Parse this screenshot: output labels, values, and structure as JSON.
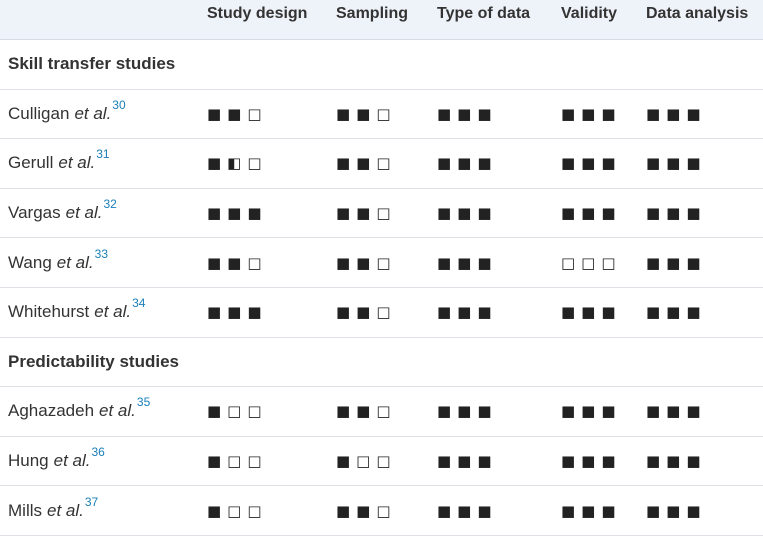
{
  "table": {
    "columns": [
      "Study design",
      "Sampling",
      "Type of data",
      "Validity",
      "Data analysis"
    ],
    "sections": [
      {
        "title": "Skill transfer studies",
        "rows": [
          {
            "study": {
              "name": "Culligan",
              "etal": "et al.",
              "ref": "30"
            },
            "ratings": [
              "■■□",
              "■■□",
              "■■■",
              "■■■",
              "■■■"
            ]
          },
          {
            "study": {
              "name": "Gerull",
              "etal": "et al.",
              "ref": "31"
            },
            "ratings": [
              "■◧□",
              "■■□",
              "■■■",
              "■■■",
              "■■■"
            ]
          },
          {
            "study": {
              "name": "Vargas",
              "etal": "et al.",
              "ref": "32"
            },
            "ratings": [
              "■■■",
              "■■□",
              "■■■",
              "■■■",
              "■■■"
            ]
          },
          {
            "study": {
              "name": "Wang",
              "etal": "et al.",
              "ref": "33"
            },
            "ratings": [
              "■■□",
              "■■□",
              "■■■",
              "□□□",
              "■■■"
            ]
          },
          {
            "study": {
              "name": "Whitehurst",
              "etal": "et al.",
              "ref": "34"
            },
            "ratings": [
              "■■■",
              "■■□",
              "■■■",
              "■■■",
              "■■■"
            ]
          }
        ]
      },
      {
        "title": "Predictability studies",
        "rows": [
          {
            "study": {
              "name": "Aghazadeh",
              "etal": "et al.",
              "ref": "35"
            },
            "ratings": [
              "■□□",
              "■■□",
              "■■■",
              "■■■",
              "■■■"
            ]
          },
          {
            "study": {
              "name": "Hung",
              "etal": "et al.",
              "ref": "36"
            },
            "ratings": [
              "■□□",
              "■□□",
              "■■■",
              "■■■",
              "■■■"
            ]
          },
          {
            "study": {
              "name": "Mills",
              "etal": "et al.",
              "ref": "37"
            },
            "ratings": [
              "■□□",
              "■■□",
              "■■■",
              "■■■",
              "■■■"
            ]
          }
        ]
      }
    ]
  }
}
